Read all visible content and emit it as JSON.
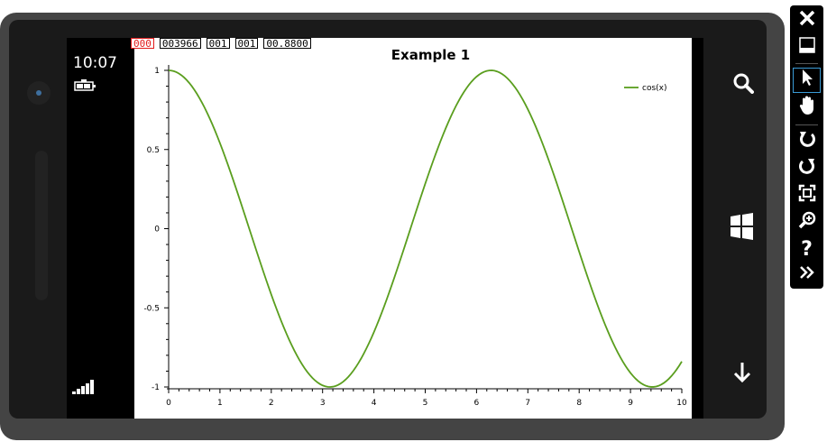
{
  "device": {
    "status_time": "10:07",
    "counters": [
      "000",
      "003966",
      "001",
      "001",
      "00.8800"
    ]
  },
  "chart_data": {
    "type": "line",
    "title": "Example 1",
    "xlabel": "",
    "ylabel": "",
    "xlim": [
      0,
      10
    ],
    "ylim": [
      -1,
      1
    ],
    "xticks": [
      "0",
      "1",
      "2",
      "3",
      "4",
      "5",
      "6",
      "7",
      "8",
      "9",
      "10"
    ],
    "yticks": [
      "-1",
      "-0.5",
      "0",
      "0.5",
      "1"
    ],
    "legend": "top-right",
    "grid": false,
    "series": [
      {
        "name": "cos(x)",
        "function": "cos",
        "color": "#5a9e1e",
        "samples": 201
      }
    ]
  },
  "toolbar": {
    "items": [
      "close-icon",
      "minimize-icon",
      "pointer-icon",
      "hand-icon",
      "rotate-left-icon",
      "rotate-right-icon",
      "fit-screen-icon",
      "zoom-icon",
      "help-icon",
      "expand-icon"
    ]
  }
}
